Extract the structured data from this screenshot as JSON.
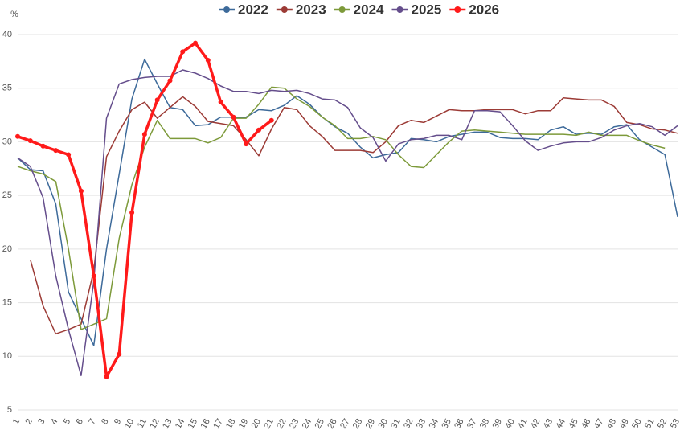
{
  "chart_data": {
    "type": "line",
    "y_unit": "%",
    "categories": [
      "1",
      "2",
      "3",
      "4",
      "5",
      "6",
      "7",
      "8",
      "9",
      "10",
      "11",
      "12",
      "13",
      "14",
      "15",
      "16",
      "17",
      "18",
      "19",
      "20",
      "21",
      "22",
      "23",
      "24",
      "25",
      "26",
      "27",
      "28",
      "29",
      "30",
      "31",
      "32",
      "33",
      "34",
      "35",
      "36",
      "37",
      "38",
      "39",
      "40",
      "41",
      "42",
      "43",
      "44",
      "45",
      "46",
      "47",
      "48",
      "49",
      "50",
      "51",
      "52",
      "53"
    ],
    "ylim": [
      5,
      40
    ],
    "yticks": [
      5,
      10,
      15,
      20,
      25,
      30,
      35,
      40
    ],
    "grid": true,
    "legend": "top",
    "series": [
      {
        "name": "2022",
        "color": "#3d6a9a",
        "width": 1.5,
        "marker": false,
        "values": [
          28.5,
          27.4,
          27.3,
          24.2,
          16,
          13.5,
          11,
          20,
          27,
          34,
          37.7,
          35.4,
          33.2,
          33,
          31.5,
          31.6,
          32.3,
          32.3,
          32.3,
          33,
          32.9,
          33.4,
          34.3,
          33.5,
          32.3,
          31.4,
          30.8,
          29.5,
          28.5,
          28.8,
          29,
          30.3,
          30.2,
          30,
          30.5,
          30.7,
          30.9,
          30.9,
          30.4,
          30.3,
          30.3,
          30.2,
          31.1,
          31.4,
          30.7,
          30.8,
          30.7,
          31.4,
          31.6,
          30.2,
          29.5,
          28.8,
          23
        ]
      },
      {
        "name": "2023",
        "color": "#9c3b36",
        "width": 1.5,
        "marker": false,
        "values": [
          null,
          19,
          14.7,
          12.1,
          12.5,
          13,
          18,
          28.6,
          31,
          33,
          33.7,
          32.2,
          33.2,
          34.2,
          33.3,
          31.9,
          31.7,
          31.5,
          30.2,
          28.7,
          31.2,
          33.2,
          33,
          31.5,
          30.5,
          29.2,
          29.2,
          29.2,
          29,
          30,
          31.5,
          32,
          31.8,
          32.4,
          33,
          32.9,
          32.9,
          33,
          33,
          33,
          32.6,
          32.9,
          32.9,
          34.1,
          34,
          33.9,
          33.9,
          33.3,
          31.8,
          31.6,
          31.2,
          31.1,
          30.8
        ]
      },
      {
        "name": "2024",
        "color": "#7d9a3a",
        "width": 1.5,
        "marker": false,
        "values": [
          27.7,
          27.3,
          27,
          26.3,
          20,
          12.5,
          13,
          13.5,
          21,
          26,
          29.5,
          32,
          30.3,
          30.3,
          30.3,
          29.9,
          30.4,
          32.2,
          32.2,
          33.5,
          35.1,
          35,
          34,
          33.3,
          32.3,
          31.5,
          30.3,
          30.3,
          30.5,
          30.2,
          28.8,
          27.7,
          27.6,
          28.8,
          30,
          31,
          31.1,
          31,
          30.9,
          30.8,
          30.7,
          30.7,
          30.7,
          30.7,
          30.6,
          30.9,
          30.6,
          30.6,
          30.6,
          30.1,
          29.7,
          29.4,
          null
        ]
      },
      {
        "name": "2025",
        "color": "#654e8c",
        "width": 1.5,
        "marker": false,
        "values": [
          28.5,
          27.7,
          24.8,
          17.5,
          12.5,
          8.2,
          17,
          32.2,
          35.4,
          35.8,
          36,
          36.1,
          36.1,
          36.7,
          36.4,
          35.9,
          35.2,
          34.7,
          34.7,
          34.5,
          34.8,
          34.7,
          34.8,
          34.5,
          34,
          33.9,
          33.2,
          31.3,
          30.4,
          28.2,
          29.8,
          30.2,
          30.3,
          30.6,
          30.6,
          30.2,
          32.9,
          32.9,
          32.8,
          31.5,
          30.1,
          29.2,
          29.6,
          29.9,
          30,
          30,
          30.4,
          31.1,
          31.5,
          31.7,
          31.4,
          30.6,
          31.5
        ]
      },
      {
        "name": "2026",
        "color": "#ff1a1a",
        "width": 3.5,
        "marker": true,
        "values": [
          30.5,
          30.1,
          29.6,
          29.2,
          28.8,
          25.4,
          17.5,
          8.1,
          10.2,
          23.4,
          30.7,
          33.9,
          35.7,
          38.4,
          39.2,
          37.6,
          33.7,
          32.3,
          29.8,
          31.1,
          32,
          null,
          null,
          null,
          null,
          null,
          null,
          null,
          null,
          null,
          null,
          null,
          null,
          null,
          null,
          null,
          null,
          null,
          null,
          null,
          null,
          null,
          null,
          null,
          null,
          null,
          null,
          null,
          null,
          null,
          null,
          null,
          null
        ]
      }
    ]
  }
}
